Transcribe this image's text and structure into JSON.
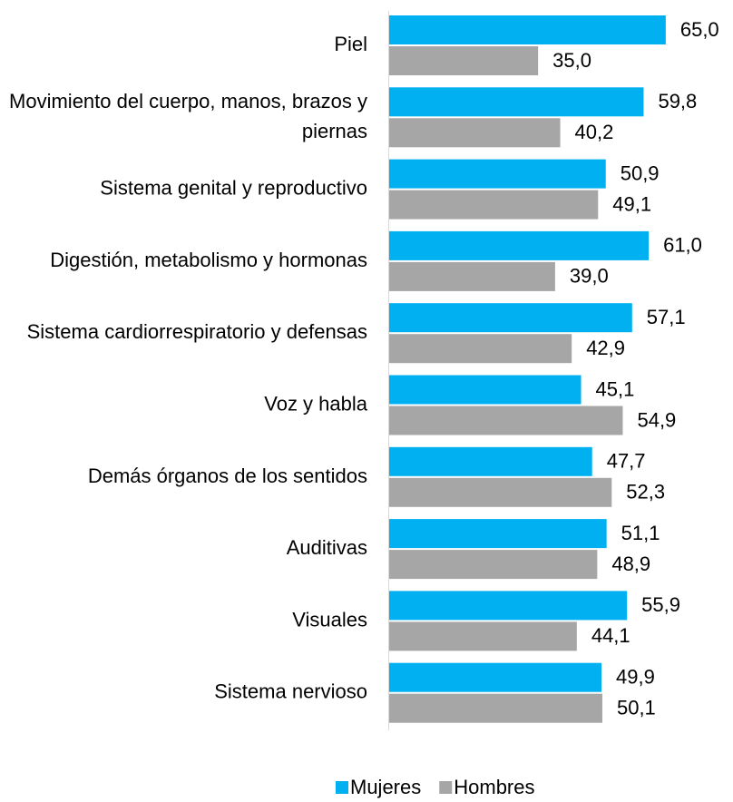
{
  "chart_data": {
    "type": "bar",
    "orientation": "horizontal",
    "categories": [
      "Piel",
      "Movimiento del cuerpo, manos, brazos y piernas",
      "Sistema genital y reproductivo",
      "Digestión, metabolismo y hormonas",
      "Sistema cardiorrespiratorio y defensas",
      "Voz y habla",
      "Demás órganos de los sentidos",
      "Auditivas",
      "Visuales",
      "Sistema nervioso"
    ],
    "series": [
      {
        "name": "Mujeres",
        "color": "#00b0f0",
        "values": [
          65.0,
          59.8,
          50.9,
          61.0,
          57.1,
          45.1,
          47.7,
          51.1,
          55.9,
          49.9
        ],
        "value_labels": [
          "65,0",
          "59,8",
          "50,9",
          "61,0",
          "57,1",
          "45,1",
          "47,7",
          "51,1",
          "55,9",
          "49,9"
        ]
      },
      {
        "name": "Hombres",
        "color": "#a6a6a6",
        "values": [
          35.0,
          40.2,
          49.1,
          39.0,
          42.9,
          54.9,
          52.3,
          48.9,
          44.1,
          50.1
        ],
        "value_labels": [
          "35,0",
          "40,2",
          "49,1",
          "39,0",
          "42,9",
          "54,9",
          "52,3",
          "48,9",
          "44,1",
          "50,1"
        ]
      }
    ],
    "xlim": [
      0,
      100
    ],
    "legend": "bottom"
  }
}
